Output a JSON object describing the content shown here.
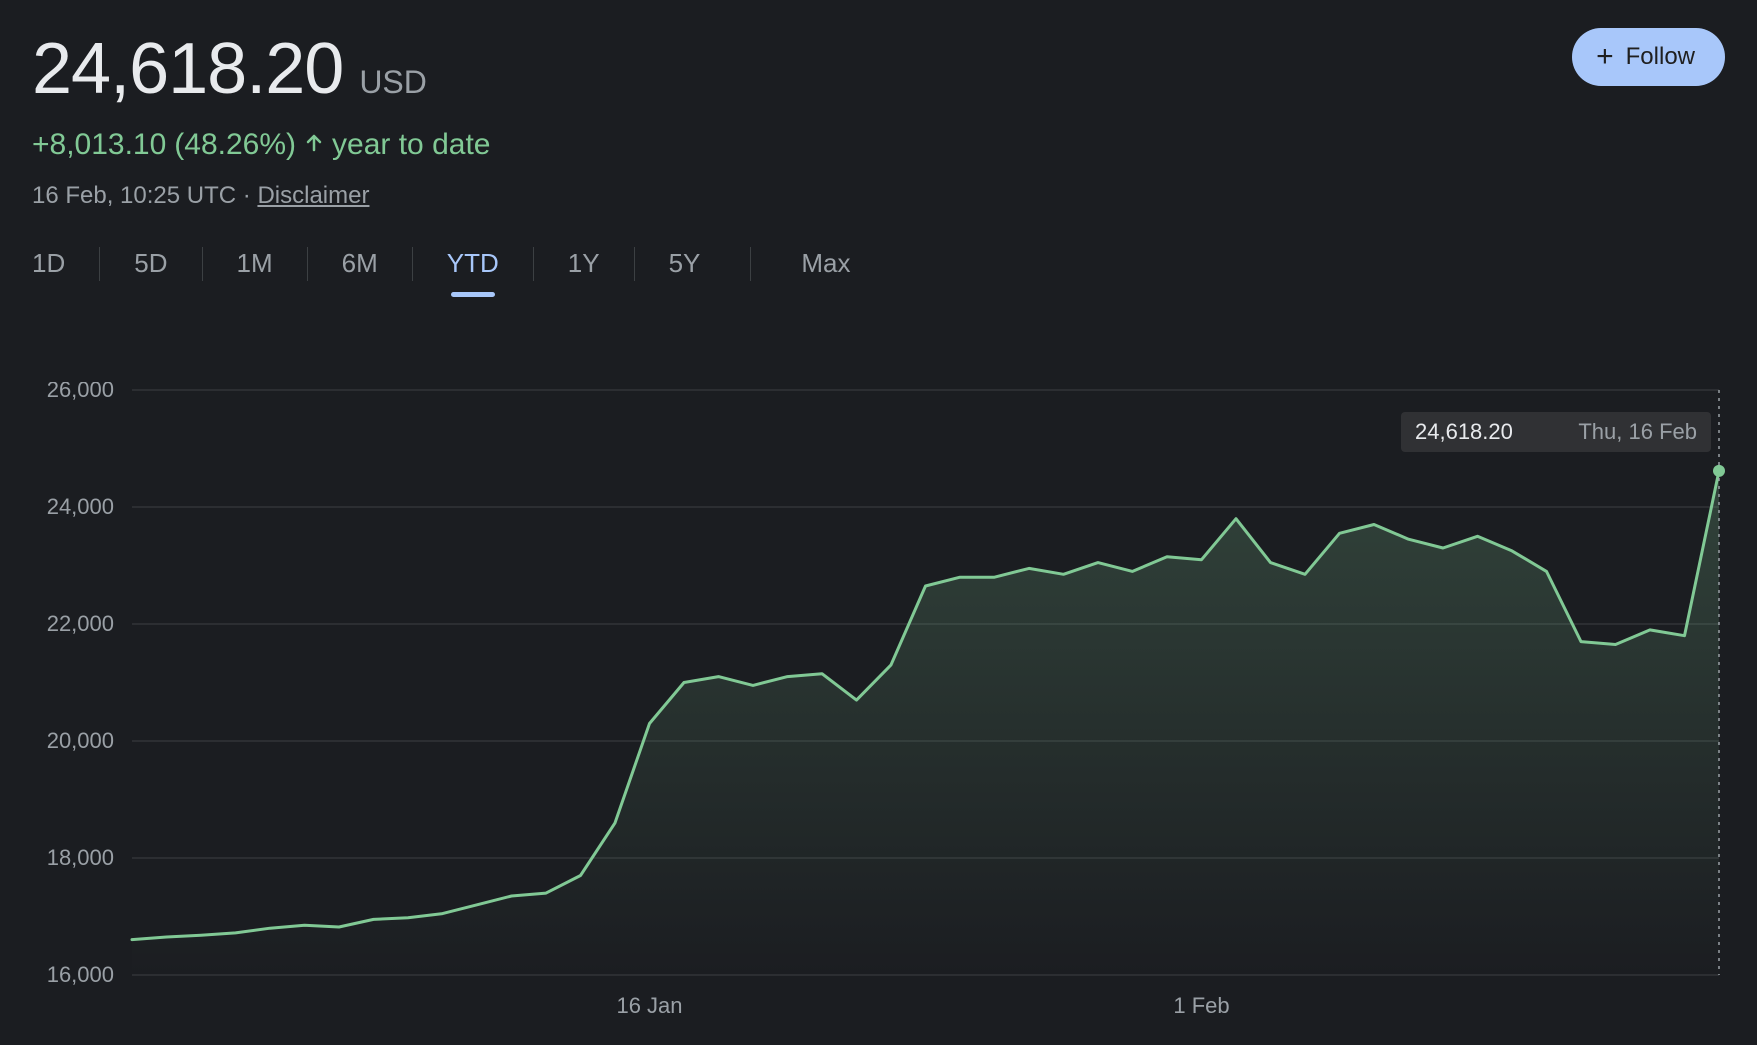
{
  "header": {
    "price": "24,618.20",
    "currency": "USD",
    "change_abs": "+8,013.10",
    "change_pct": "(48.26%)",
    "change_period": "year to date",
    "timestamp": "16 Feb, 10:25 UTC",
    "separator": "·",
    "disclaimer_label": "Disclaimer",
    "follow_label": "Follow"
  },
  "tabs": {
    "items": [
      "1D",
      "5D",
      "1M",
      "6M",
      "YTD",
      "1Y",
      "5Y",
      "Max"
    ],
    "active_index": 4
  },
  "chart": {
    "type": "line-area",
    "line_color": "#81c995",
    "fill_top_color": "rgba(129,201,149,0.22)",
    "fill_bottom_color": "rgba(129,201,149,0.0)",
    "background_color": "#1b1d21",
    "grid_color": "#3c4043",
    "label_color": "#9aa0a6",
    "label_fontsize": 22,
    "ylim": [
      16000,
      26000
    ],
    "yticks": [
      16000,
      18000,
      20000,
      22000,
      24000,
      26000
    ],
    "ytick_labels": [
      "16,000",
      "18,000",
      "20,000",
      "22,000",
      "24,000",
      "26,000"
    ],
    "x_count": 47,
    "xticks": [
      {
        "index": 15,
        "label": "16 Jan"
      },
      {
        "index": 31,
        "label": "1 Feb"
      }
    ],
    "values": [
      16605,
      16650,
      16680,
      16720,
      16800,
      16850,
      16820,
      16950,
      16980,
      17050,
      17200,
      17350,
      17400,
      17700,
      18600,
      20300,
      21000,
      21100,
      20950,
      21100,
      21150,
      20700,
      21300,
      22650,
      22800,
      22800,
      22950,
      22850,
      23050,
      22900,
      23150,
      23100,
      23800,
      23050,
      22850,
      23550,
      23700,
      23450,
      23300,
      23500,
      23250,
      22900,
      21700,
      21650,
      21900,
      21800,
      24618
    ],
    "cursor": {
      "value_label": "24,618.20",
      "date_label": "Thu, 16 Feb",
      "dot_color": "#81c995"
    }
  }
}
